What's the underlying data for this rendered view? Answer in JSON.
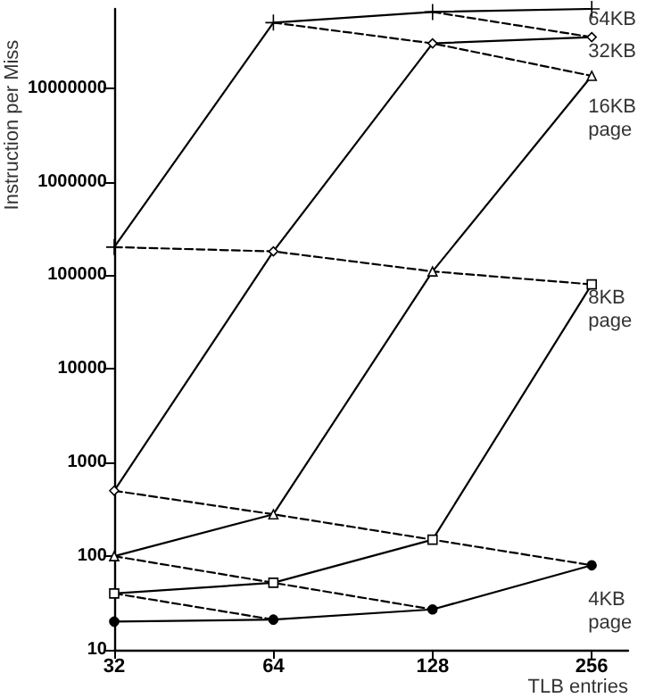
{
  "chart_data": {
    "type": "line",
    "xlabel": "TLB entries",
    "ylabel": "Instruction per Miss",
    "x": [
      32,
      64,
      128,
      256
    ],
    "log": "xy",
    "xlim": [
      32,
      300
    ],
    "xticks": [
      32,
      64,
      128,
      256
    ],
    "ylim": [
      10,
      70000000
    ],
    "yticks": [
      10,
      100,
      1000,
      10000,
      100000,
      1000000,
      10000000
    ],
    "grid": false,
    "legend": false,
    "series": [
      {
        "name": "64KB",
        "color": "#000000",
        "values": [
          200000,
          50000000,
          65000000,
          70000000
        ],
        "marker": "cross",
        "line_style": "solid"
      },
      {
        "name": "32KB",
        "color": "#000000",
        "values": [
          500,
          180000,
          30000000,
          35000000
        ],
        "marker": "diamond",
        "line_style": "solid"
      },
      {
        "name": "16KB page",
        "color": "#000000",
        "values": [
          100,
          280,
          110000,
          13500000
        ],
        "marker": "triangle",
        "line_style": "solid"
      },
      {
        "name": "8KB page",
        "color": "#000000",
        "values": [
          40,
          52,
          150,
          80000
        ],
        "marker": "square",
        "line_style": "solid"
      },
      {
        "name": "4KB page",
        "color": "#000000",
        "values": [
          20,
          21,
          27,
          80
        ],
        "marker": "circle",
        "line_style": "solid"
      },
      {
        "color": "#000000",
        "x": [
          128,
          256
        ],
        "values": [
          65000000,
          35000000
        ],
        "marker": "none",
        "line_style": "dashed"
      },
      {
        "color": "#000000",
        "x": [
          64,
          128,
          256
        ],
        "values": [
          50000000,
          30000000,
          13500000
        ],
        "marker": "none",
        "line_style": "dashed"
      },
      {
        "color": "#000000",
        "x": [
          32,
          64,
          128,
          256
        ],
        "values": [
          200000,
          180000,
          110000,
          80000
        ],
        "marker": "none",
        "line_style": "dashed"
      },
      {
        "color": "#000000",
        "x": [
          32,
          64,
          128,
          256
        ],
        "values": [
          500,
          280,
          150,
          80
        ],
        "marker": "none",
        "line_style": "dashed"
      },
      {
        "color": "#000000",
        "x": [
          32,
          64,
          128
        ],
        "values": [
          100,
          52,
          27
        ],
        "marker": "none",
        "line_style": "dashed"
      },
      {
        "color": "#000000",
        "x": [
          32,
          64
        ],
        "values": [
          40,
          21
        ],
        "marker": "none",
        "line_style": "dashed"
      }
    ]
  }
}
